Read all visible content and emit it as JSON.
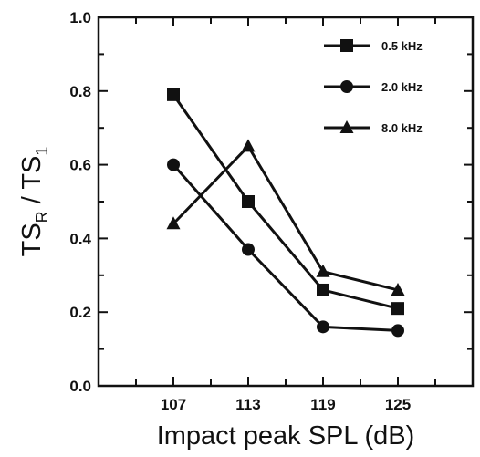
{
  "chart_data": {
    "type": "line",
    "x": [
      107,
      113,
      119,
      125
    ],
    "x_tick_labels": [
      "107",
      "113",
      "119",
      "125"
    ],
    "xlim": [
      101,
      131
    ],
    "ylim": [
      0,
      1.0
    ],
    "y_ticks": [
      0.0,
      0.2,
      0.4,
      0.6,
      0.8,
      1.0
    ],
    "y_tick_labels": [
      "0.0",
      "0.2",
      "0.4",
      "0.6",
      "0.8",
      "1.0"
    ],
    "xlabel": "Impact peak SPL (dB)",
    "ylabel": {
      "main": "TS",
      "sub1": "R",
      "sep": " / TS",
      "sub2": "1"
    },
    "legend_position": "top-right",
    "grid": false,
    "series": [
      {
        "name": "0.5 kHz",
        "marker": "square",
        "values": [
          0.79,
          0.5,
          0.26,
          0.21
        ]
      },
      {
        "name": "2.0 kHz",
        "marker": "circle",
        "values": [
          0.6,
          0.37,
          0.16,
          0.15
        ]
      },
      {
        "name": "8.0 kHz",
        "marker": "triangle",
        "values": [
          0.44,
          0.65,
          0.31,
          0.26
        ]
      }
    ]
  }
}
